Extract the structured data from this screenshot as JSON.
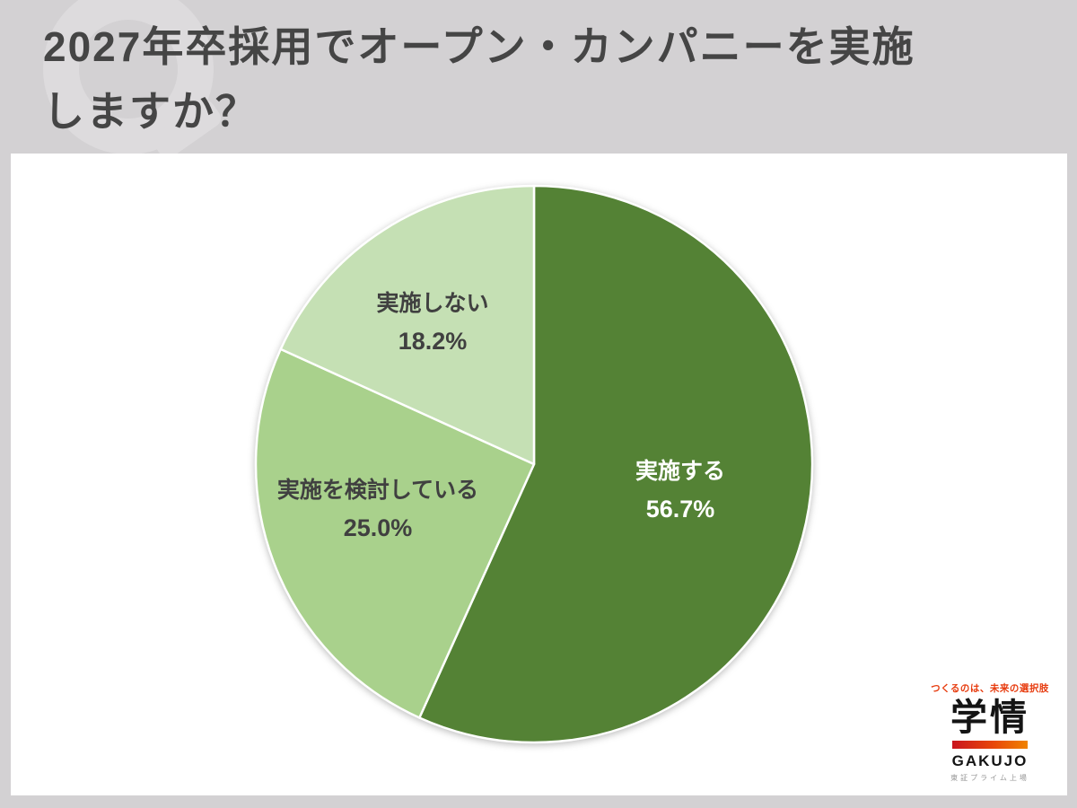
{
  "header": {
    "title_lines": [
      "2027年卒採用でオープン・カンパニーを実施",
      "しますか？"
    ]
  },
  "chart_data": {
    "type": "pie",
    "title": "2027年卒採用でオープン・カンパニーを実施しますか？",
    "start_angle_deg": 0,
    "direction": "clockwise",
    "legend": "none",
    "data_labels": "inside",
    "slices": [
      {
        "label": "実施する",
        "value": 56.7,
        "pct_label": "56.7%",
        "color": "#548235",
        "text_color": "#ffffff"
      },
      {
        "label": "実施を検討している",
        "value": 25.0,
        "pct_label": "25.0%",
        "color": "#A9D18C",
        "text_color": "#404040"
      },
      {
        "label": "実施しない",
        "value": 18.2,
        "pct_label": "18.2%",
        "color": "#C5E0B4",
        "text_color": "#404040"
      }
    ]
  },
  "logo": {
    "tagline": "つくるのは、未来の選択肢",
    "kanji": "学情",
    "latin": "GAKUJO",
    "listing": "東証プライム上場"
  },
  "colors": {
    "background": "#d3d1d3",
    "panel": "#ffffff",
    "title_text": "#454545",
    "pie_separator": "#ffffff"
  }
}
